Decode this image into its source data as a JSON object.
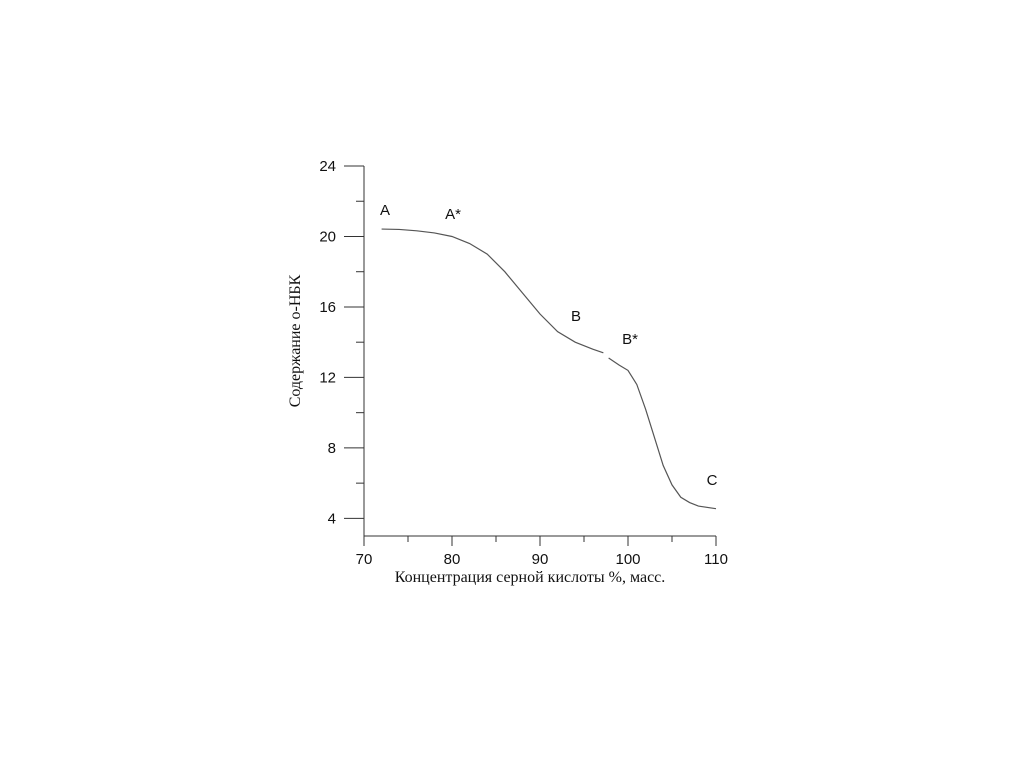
{
  "chart_data": {
    "type": "line",
    "xlabel": "Концентрация серной кислоты %, масс.",
    "ylabel": "Содержание о-НБК",
    "x": [
      72,
      74,
      76,
      78,
      80,
      82,
      84,
      86,
      88,
      90,
      92,
      94,
      96,
      97.2,
      97.5,
      97.8,
      99,
      100,
      101,
      102,
      103,
      104,
      105,
      106,
      107,
      108,
      110
    ],
    "series": [
      {
        "color": "#555555",
        "values": [
          20.42,
          20.4,
          20.32,
          20.2,
          20.0,
          19.6,
          19.0,
          18.0,
          16.8,
          15.6,
          14.6,
          14.0,
          13.6,
          13.4,
          null,
          13.1,
          12.7,
          12.4,
          11.6,
          10.2,
          8.6,
          7.0,
          5.9,
          5.2,
          4.9,
          4.7,
          4.55
        ]
      }
    ],
    "annotations": [
      "A",
      "A*",
      "B",
      "B*",
      "C"
    ],
    "xlim": [
      70,
      110
    ],
    "xticks": [
      70,
      80,
      90,
      100,
      110
    ],
    "xminor": [
      75,
      85,
      95,
      105
    ],
    "ylim": [
      3,
      24
    ],
    "yticks": [
      4,
      8,
      12,
      16,
      20,
      24
    ],
    "yminor": [
      6,
      10,
      14,
      18,
      22
    ],
    "grid": false
  }
}
